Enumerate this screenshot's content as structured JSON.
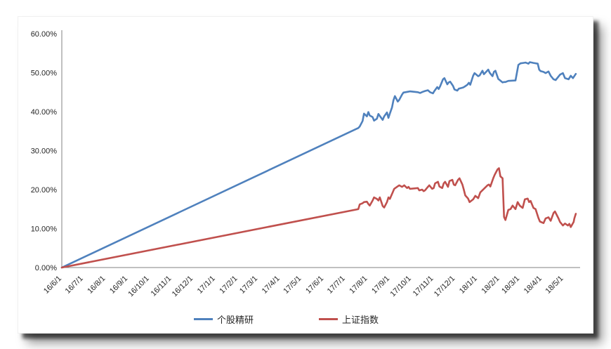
{
  "chart_data": {
    "type": "line",
    "title": "",
    "xlabel": "",
    "ylabel": "",
    "grid": false,
    "legend_position": "bottom",
    "y_axis": {
      "min": 0,
      "max": 60,
      "step": 10,
      "tick_labels": [
        "0.00%",
        "10.00%",
        "20.00%",
        "30.00%",
        "40.00%",
        "50.00%",
        "60.00%"
      ],
      "unit": "%"
    },
    "x_axis": {
      "start_date": "16/6/1",
      "axis_end_date": "18/5/24",
      "tick_labels": [
        "16/6/1",
        "16/7/1",
        "16/8/1",
        "16/9/1",
        "16/10/1",
        "16/11/1",
        "16/12/1",
        "17/1/1",
        "17/2/1",
        "17/3/1",
        "17/4/1",
        "17/5/1",
        "17/6/1",
        "17/7/1",
        "17/8/1",
        "17/9/1",
        "17/10/1",
        "17/11/1",
        "17/12/1",
        "18/1/1",
        "18/2/1",
        "18/3/1",
        "18/4/1",
        "18/5/1"
      ]
    },
    "legend": [
      {
        "label": "个股精研",
        "color": "#4F81BD"
      },
      {
        "label": "上证指数",
        "color": "#C0504D"
      }
    ],
    "series": [
      {
        "name": "个股精研",
        "color": "#4F81BD",
        "points": [
          [
            "16/6/1",
            0
          ],
          [
            "17/7/19",
            35.8
          ],
          [
            "17/7/21",
            36.2
          ],
          [
            "17/7/25",
            37.6
          ],
          [
            "17/7/27",
            39.5
          ],
          [
            "17/7/31",
            38.8
          ],
          [
            "17/8/2",
            39.9
          ],
          [
            "17/8/4",
            39.0
          ],
          [
            "17/8/8",
            38.6
          ],
          [
            "17/8/10",
            37.7
          ],
          [
            "17/8/14",
            38.2
          ],
          [
            "17/8/16",
            39.4
          ],
          [
            "17/8/18",
            38.9
          ],
          [
            "17/8/22",
            37.9
          ],
          [
            "17/8/24",
            38.8
          ],
          [
            "17/8/28",
            39.8
          ],
          [
            "17/8/30",
            38.4
          ],
          [
            "17/9/1",
            39.5
          ],
          [
            "17/9/4",
            41.1
          ],
          [
            "17/9/6",
            42.9
          ],
          [
            "17/9/8",
            44.0
          ],
          [
            "17/9/12",
            42.6
          ],
          [
            "17/9/14",
            43.0
          ],
          [
            "17/9/18",
            44.4
          ],
          [
            "17/9/20",
            44.9
          ],
          [
            "17/9/26",
            45.1
          ],
          [
            "17/9/29",
            45.2
          ],
          [
            "17/10/10",
            45.0
          ],
          [
            "17/10/13",
            44.8
          ],
          [
            "17/10/17",
            45.1
          ],
          [
            "17/10/20",
            45.3
          ],
          [
            "17/10/24",
            45.5
          ],
          [
            "17/10/27",
            45.0
          ],
          [
            "17/10/31",
            44.7
          ],
          [
            "17/11/2",
            45.3
          ],
          [
            "17/11/6",
            46.3
          ],
          [
            "17/11/8",
            45.8
          ],
          [
            "17/11/10",
            46.5
          ],
          [
            "17/11/14",
            48.3
          ],
          [
            "17/11/16",
            48.6
          ],
          [
            "17/11/20",
            47.0
          ],
          [
            "17/11/22",
            47.5
          ],
          [
            "17/11/24",
            47.7
          ],
          [
            "17/11/28",
            46.6
          ],
          [
            "17/11/30",
            45.7
          ],
          [
            "17/12/4",
            45.4
          ],
          [
            "17/12/6",
            45.9
          ],
          [
            "17/12/8",
            46.0
          ],
          [
            "17/12/12",
            46.2
          ],
          [
            "17/12/14",
            46.4
          ],
          [
            "17/12/18",
            46.9
          ],
          [
            "17/12/20",
            47.4
          ],
          [
            "17/12/22",
            46.9
          ],
          [
            "17/12/26",
            49.2
          ],
          [
            "17/12/28",
            49.9
          ],
          [
            "18/1/2",
            49.1
          ],
          [
            "18/1/4",
            49.3
          ],
          [
            "18/1/8",
            50.5
          ],
          [
            "18/1/10",
            49.6
          ],
          [
            "18/1/12",
            50.0
          ],
          [
            "18/1/16",
            50.8
          ],
          [
            "18/1/18",
            50.0
          ],
          [
            "18/1/22",
            49.1
          ],
          [
            "18/1/24",
            50.2
          ],
          [
            "18/1/26",
            50.5
          ],
          [
            "18/1/30",
            48.4
          ],
          [
            "18/2/1",
            48.1
          ],
          [
            "18/2/5",
            47.5
          ],
          [
            "18/2/7",
            47.6
          ],
          [
            "18/2/9",
            47.6
          ],
          [
            "18/2/13",
            47.9
          ],
          [
            "18/2/23",
            48.0
          ],
          [
            "18/2/27",
            52.0
          ],
          [
            "18/3/2",
            52.4
          ],
          [
            "18/3/6",
            52.5
          ],
          [
            "18/3/9",
            52.6
          ],
          [
            "18/3/13",
            52.3
          ],
          [
            "18/3/15",
            52.7
          ],
          [
            "18/3/20",
            52.5
          ],
          [
            "18/3/26",
            52.3
          ],
          [
            "18/3/28",
            50.8
          ],
          [
            "18/3/30",
            50.4
          ],
          [
            "18/4/3",
            50.2
          ],
          [
            "18/4/6",
            49.9
          ],
          [
            "18/4/10",
            50.3
          ],
          [
            "18/4/13",
            49.2
          ],
          [
            "18/4/17",
            48.3
          ],
          [
            "18/4/20",
            48.1
          ],
          [
            "18/4/26",
            49.5
          ],
          [
            "18/4/30",
            49.9
          ],
          [
            "18/5/3",
            48.6
          ],
          [
            "18/5/8",
            48.3
          ],
          [
            "18/5/11",
            49.2
          ],
          [
            "18/5/14",
            48.6
          ],
          [
            "18/5/17",
            49.4
          ],
          [
            "18/5/18",
            49.7
          ]
        ]
      },
      {
        "name": "上证指数",
        "color": "#C0504D",
        "points": [
          [
            "16/6/1",
            0
          ],
          [
            "17/7/19",
            15.0
          ],
          [
            "17/7/21",
            16.2
          ],
          [
            "17/7/25",
            16.5
          ],
          [
            "17/7/27",
            16.8
          ],
          [
            "17/7/31",
            16.9
          ],
          [
            "17/8/2",
            16.3
          ],
          [
            "17/8/4",
            15.9
          ],
          [
            "17/8/8",
            17.2
          ],
          [
            "17/8/10",
            18.0
          ],
          [
            "17/8/14",
            17.6
          ],
          [
            "17/8/16",
            17.2
          ],
          [
            "17/8/18",
            18.0
          ],
          [
            "17/8/22",
            15.8
          ],
          [
            "17/8/24",
            15.4
          ],
          [
            "17/8/28",
            16.8
          ],
          [
            "17/8/30",
            18.0
          ],
          [
            "17/9/1",
            17.6
          ],
          [
            "17/9/5",
            19.3
          ],
          [
            "17/9/7",
            20.2
          ],
          [
            "17/9/11",
            20.7
          ],
          [
            "17/9/14",
            21.1
          ],
          [
            "17/9/18",
            20.7
          ],
          [
            "17/9/21",
            21.1
          ],
          [
            "17/9/25",
            20.4
          ],
          [
            "17/9/27",
            20.7
          ],
          [
            "17/9/29",
            20.2
          ],
          [
            "17/10/10",
            20.4
          ],
          [
            "17/10/12",
            19.8
          ],
          [
            "17/10/16",
            20.0
          ],
          [
            "17/10/18",
            19.6
          ],
          [
            "17/10/20",
            19.8
          ],
          [
            "17/10/24",
            20.7
          ],
          [
            "17/10/26",
            21.1
          ],
          [
            "17/10/30",
            20.2
          ],
          [
            "17/11/1",
            20.4
          ],
          [
            "17/11/3",
            21.6
          ],
          [
            "17/11/7",
            22.0
          ],
          [
            "17/11/9",
            20.8
          ],
          [
            "17/11/13",
            20.4
          ],
          [
            "17/11/15",
            21.6
          ],
          [
            "17/11/17",
            22.0
          ],
          [
            "17/11/21",
            20.7
          ],
          [
            "17/11/23",
            22.2
          ],
          [
            "17/11/27",
            22.5
          ],
          [
            "17/11/29",
            21.3
          ],
          [
            "17/12/1",
            21.1
          ],
          [
            "17/12/5",
            22.5
          ],
          [
            "17/12/7",
            22.9
          ],
          [
            "17/12/11",
            21.3
          ],
          [
            "17/12/13",
            20.0
          ],
          [
            "17/12/15",
            18.5
          ],
          [
            "17/12/19",
            17.7
          ],
          [
            "17/12/21",
            16.8
          ],
          [
            "17/12/26",
            17.5
          ],
          [
            "17/12/29",
            18.4
          ],
          [
            "18/1/2",
            17.8
          ],
          [
            "18/1/5",
            19.3
          ],
          [
            "18/1/10",
            20.2
          ],
          [
            "18/1/15",
            21.1
          ],
          [
            "18/1/17",
            21.3
          ],
          [
            "18/1/19",
            20.8
          ],
          [
            "18/1/23",
            22.9
          ],
          [
            "18/1/25",
            23.8
          ],
          [
            "18/1/29",
            25.2
          ],
          [
            "18/1/31",
            25.5
          ],
          [
            "18/2/2",
            23.4
          ],
          [
            "18/2/5",
            22.9
          ],
          [
            "18/2/7",
            13.0
          ],
          [
            "18/2/9",
            12.2
          ],
          [
            "18/2/13",
            14.8
          ],
          [
            "18/2/16",
            15.0
          ],
          [
            "18/2/19",
            15.9
          ],
          [
            "18/2/23",
            15.0
          ],
          [
            "18/2/26",
            16.8
          ],
          [
            "18/3/1",
            15.9
          ],
          [
            "18/3/5",
            15.3
          ],
          [
            "18/3/8",
            17.5
          ],
          [
            "18/3/12",
            17.7
          ],
          [
            "18/3/14",
            16.8
          ],
          [
            "18/3/16",
            17.1
          ],
          [
            "18/3/20",
            15.3
          ],
          [
            "18/3/23",
            15.0
          ],
          [
            "18/3/27",
            12.7
          ],
          [
            "18/3/29",
            11.8
          ],
          [
            "18/4/3",
            11.4
          ],
          [
            "18/4/6",
            12.6
          ],
          [
            "18/4/10",
            12.9
          ],
          [
            "18/4/13",
            12.0
          ],
          [
            "18/4/17",
            14.0
          ],
          [
            "18/4/19",
            14.4
          ],
          [
            "18/4/24",
            12.6
          ],
          [
            "18/4/26",
            11.7
          ],
          [
            "18/4/30",
            10.8
          ],
          [
            "18/5/3",
            11.3
          ],
          [
            "18/5/7",
            10.8
          ],
          [
            "18/5/9",
            11.2
          ],
          [
            "18/5/11",
            10.4
          ],
          [
            "18/5/15",
            11.7
          ],
          [
            "18/5/16",
            12.6
          ],
          [
            "18/5/18",
            13.8
          ]
        ]
      }
    ]
  }
}
